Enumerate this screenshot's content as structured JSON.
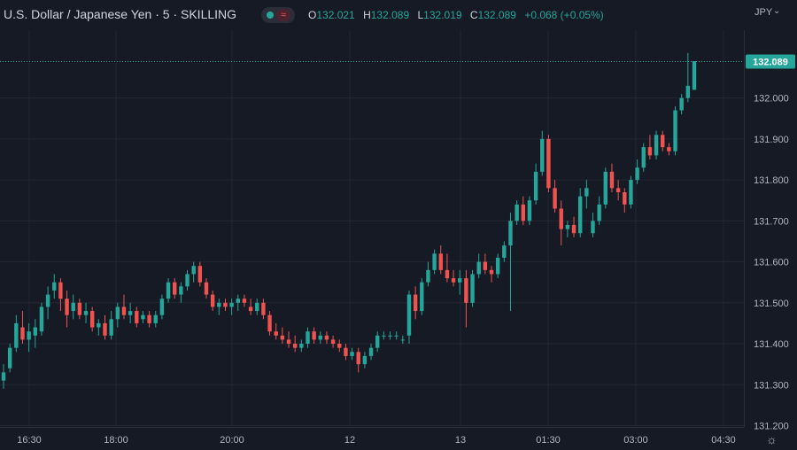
{
  "header": {
    "symbol_title": "U.S. Dollar / Japanese Yen · 5 · SKILLING",
    "ohlc": {
      "o_label": "O",
      "o_value": "132.021",
      "h_label": "H",
      "h_value": "132.089",
      "l_label": "L",
      "l_value": "132.019",
      "c_label": "C",
      "c_value": "132.089",
      "change": "+0.068 (+0.05%)"
    },
    "currency": "JPY"
  },
  "colors": {
    "background": "#161a25",
    "up": "#26a69a",
    "down": "#ef5350",
    "grid": "#232733",
    "text": "#d1d4dc"
  },
  "chart_data": {
    "type": "candlestick",
    "ylim": [
      131.2,
      132.2
    ],
    "y_ticks": [
      "131.200",
      "131.300",
      "131.400",
      "131.500",
      "131.600",
      "131.700",
      "131.800",
      "131.900",
      "132.000"
    ],
    "x_tick_labels": [
      "16:30",
      "18:00",
      "20:00",
      "12",
      "13",
      "01:30",
      "03:00",
      "04:30"
    ],
    "last_price": "132.089",
    "grid": true,
    "candles": [
      [
        131.31,
        131.35,
        131.29,
        131.33
      ],
      [
        131.34,
        131.4,
        131.33,
        131.39
      ],
      [
        131.39,
        131.47,
        131.38,
        131.45
      ],
      [
        131.44,
        131.48,
        131.4,
        131.41
      ],
      [
        131.41,
        131.45,
        131.38,
        131.43
      ],
      [
        131.42,
        131.46,
        131.39,
        131.44
      ],
      [
        131.43,
        131.5,
        131.42,
        131.49
      ],
      [
        131.49,
        131.54,
        131.46,
        131.52
      ],
      [
        131.53,
        131.57,
        131.51,
        131.55
      ],
      [
        131.55,
        131.56,
        131.48,
        131.51
      ],
      [
        131.51,
        131.53,
        131.44,
        131.47
      ],
      [
        131.48,
        131.52,
        131.46,
        131.5
      ],
      [
        131.5,
        131.51,
        131.46,
        131.47
      ],
      [
        131.47,
        131.5,
        131.45,
        131.48
      ],
      [
        131.48,
        131.49,
        131.43,
        131.44
      ],
      [
        131.44,
        131.46,
        131.42,
        131.45
      ],
      [
        131.45,
        131.47,
        131.41,
        131.42
      ],
      [
        131.42,
        131.48,
        131.41,
        131.46
      ],
      [
        131.46,
        131.5,
        131.44,
        131.49
      ],
      [
        131.49,
        131.52,
        131.46,
        131.47
      ],
      [
        131.47,
        131.5,
        131.45,
        131.48
      ],
      [
        131.48,
        131.49,
        131.44,
        131.45
      ],
      [
        131.46,
        131.48,
        131.45,
        131.47
      ],
      [
        131.47,
        131.48,
        131.44,
        131.45
      ],
      [
        131.45,
        131.48,
        131.44,
        131.47
      ],
      [
        131.47,
        131.52,
        131.46,
        131.51
      ],
      [
        131.51,
        131.56,
        131.5,
        131.55
      ],
      [
        131.55,
        131.56,
        131.51,
        131.52
      ],
      [
        131.52,
        131.55,
        131.5,
        131.54
      ],
      [
        131.54,
        131.58,
        131.53,
        131.57
      ],
      [
        131.57,
        131.6,
        131.55,
        131.59
      ],
      [
        131.59,
        131.6,
        131.54,
        131.55
      ],
      [
        131.55,
        131.56,
        131.51,
        131.52
      ],
      [
        131.52,
        131.53,
        131.48,
        131.49
      ],
      [
        131.49,
        131.51,
        131.47,
        131.5
      ],
      [
        131.5,
        131.51,
        131.48,
        131.49
      ],
      [
        131.49,
        131.51,
        131.47,
        131.5
      ],
      [
        131.5,
        131.52,
        131.48,
        131.51
      ],
      [
        131.51,
        131.52,
        131.49,
        131.5
      ],
      [
        131.49,
        131.51,
        131.47,
        131.48
      ],
      [
        131.48,
        131.51,
        131.47,
        131.5
      ],
      [
        131.5,
        131.51,
        131.46,
        131.47
      ],
      [
        131.47,
        131.48,
        131.42,
        131.43
      ],
      [
        131.43,
        131.45,
        131.41,
        131.42
      ],
      [
        131.42,
        131.44,
        131.4,
        131.41
      ],
      [
        131.41,
        131.43,
        131.39,
        131.4
      ],
      [
        131.4,
        131.42,
        131.38,
        131.39
      ],
      [
        131.39,
        131.41,
        131.38,
        131.4
      ],
      [
        131.4,
        131.44,
        131.39,
        131.43
      ],
      [
        131.43,
        131.44,
        131.4,
        131.41
      ],
      [
        131.41,
        131.43,
        131.4,
        131.42
      ],
      [
        131.42,
        131.43,
        131.4,
        131.41
      ],
      [
        131.41,
        131.42,
        131.39,
        131.4
      ],
      [
        131.4,
        131.41,
        131.38,
        131.39
      ],
      [
        131.39,
        131.4,
        131.36,
        131.37
      ],
      [
        131.37,
        131.39,
        131.36,
        131.38
      ],
      [
        131.38,
        131.39,
        131.33,
        131.35
      ],
      [
        131.35,
        131.38,
        131.34,
        131.37
      ],
      [
        131.37,
        131.4,
        131.36,
        131.39
      ],
      [
        131.39,
        131.43,
        131.38,
        131.42
      ],
      [
        131.42,
        131.43,
        131.41,
        131.42
      ],
      [
        131.42,
        131.43,
        131.41,
        131.42
      ],
      [
        131.42,
        131.43,
        131.41,
        131.42
      ],
      [
        131.41,
        131.42,
        131.4,
        131.41
      ],
      [
        131.42,
        131.53,
        131.4,
        131.52
      ],
      [
        131.52,
        131.54,
        131.46,
        131.48
      ],
      [
        131.48,
        131.56,
        131.47,
        131.55
      ],
      [
        131.55,
        131.6,
        131.54,
        131.58
      ],
      [
        131.58,
        131.63,
        131.57,
        131.62
      ],
      [
        131.62,
        131.64,
        131.57,
        131.58
      ],
      [
        131.58,
        131.62,
        131.55,
        131.56
      ],
      [
        131.56,
        131.58,
        131.54,
        131.55
      ],
      [
        131.55,
        131.58,
        131.52,
        131.56
      ],
      [
        131.56,
        131.58,
        131.44,
        131.5
      ],
      [
        131.5,
        131.58,
        131.49,
        131.57
      ],
      [
        131.57,
        131.62,
        131.56,
        131.6
      ],
      [
        131.6,
        131.62,
        131.57,
        131.58
      ],
      [
        131.58,
        131.59,
        131.55,
        131.57
      ],
      [
        131.57,
        131.62,
        131.56,
        131.61
      ],
      [
        131.61,
        131.65,
        131.6,
        131.64
      ],
      [
        131.64,
        131.72,
        131.48,
        131.7
      ],
      [
        131.7,
        131.75,
        131.69,
        131.74
      ],
      [
        131.74,
        131.76,
        131.69,
        131.7
      ],
      [
        131.7,
        131.76,
        131.69,
        131.75
      ],
      [
        131.75,
        131.84,
        131.74,
        131.82
      ],
      [
        131.82,
        131.92,
        131.81,
        131.9
      ],
      [
        131.9,
        131.91,
        131.77,
        131.78
      ],
      [
        131.78,
        131.8,
        131.72,
        131.73
      ],
      [
        131.73,
        131.75,
        131.64,
        131.68
      ],
      [
        131.68,
        131.7,
        131.66,
        131.69
      ],
      [
        131.69,
        131.71,
        131.66,
        131.67
      ],
      [
        131.67,
        131.78,
        131.66,
        131.76
      ],
      [
        131.76,
        131.8,
        131.73,
        131.78
      ],
      [
        131.67,
        131.72,
        131.66,
        131.7
      ],
      [
        131.7,
        131.76,
        131.69,
        131.74
      ],
      [
        131.74,
        131.83,
        131.73,
        131.82
      ],
      [
        131.82,
        131.84,
        131.77,
        131.78
      ],
      [
        131.78,
        131.8,
        131.75,
        131.77
      ],
      [
        131.77,
        131.78,
        131.72,
        131.74
      ],
      [
        131.74,
        131.81,
        131.73,
        131.8
      ],
      [
        131.8,
        131.85,
        131.79,
        131.83
      ],
      [
        131.83,
        131.89,
        131.82,
        131.88
      ],
      [
        131.88,
        131.91,
        131.85,
        131.86
      ],
      [
        131.86,
        131.92,
        131.85,
        131.91
      ],
      [
        131.91,
        131.92,
        131.87,
        131.88
      ],
      [
        131.88,
        131.89,
        131.86,
        131.87
      ],
      [
        131.87,
        131.98,
        131.86,
        131.97
      ],
      [
        131.97,
        132.01,
        131.96,
        132.0
      ],
      [
        132.0,
        132.11,
        131.99,
        132.03
      ],
      [
        132.02,
        132.09,
        132.02,
        132.09
      ]
    ]
  }
}
